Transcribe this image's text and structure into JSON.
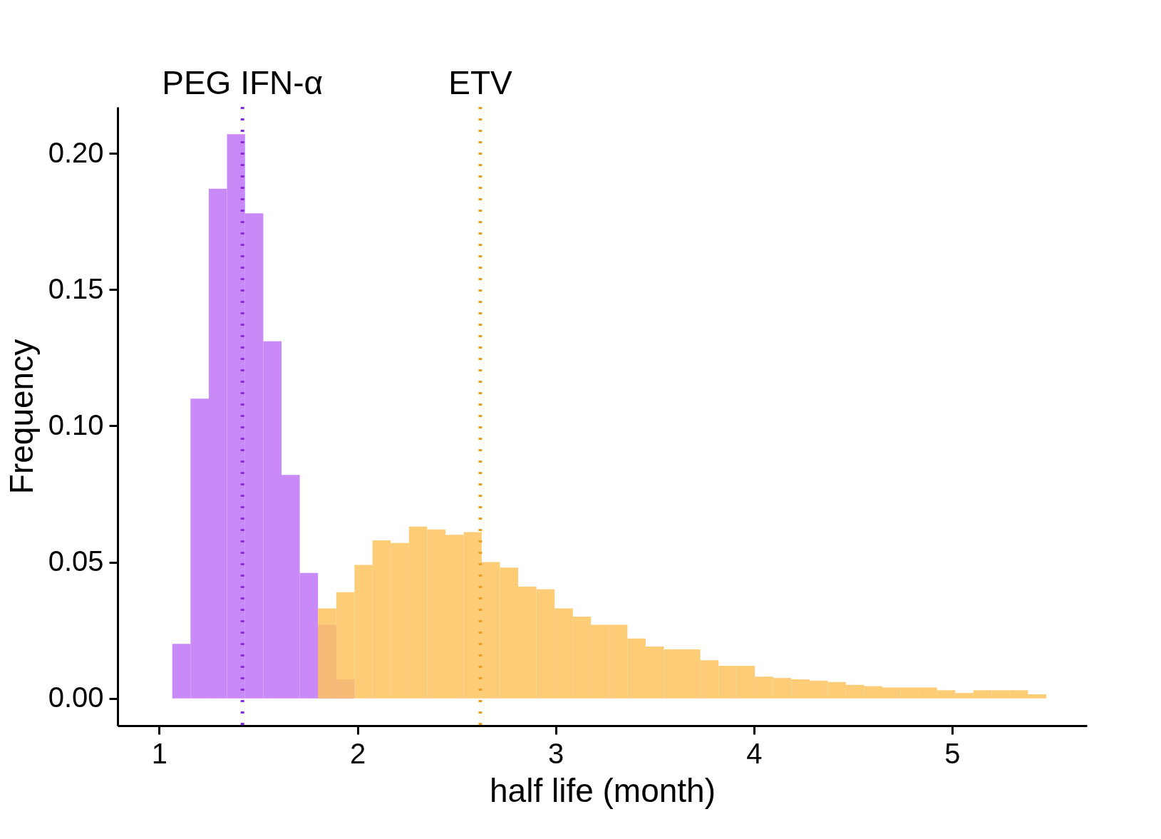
{
  "chart_data": {
    "type": "histogram",
    "xlabel": "half life (month)",
    "ylabel": "Frequency",
    "xlim": [
      0.79,
      5.68
    ],
    "xticks": [
      1,
      2,
      3,
      4,
      5
    ],
    "ylim": [
      -0.01,
      0.217
    ],
    "yticks": [
      {
        "value": 0,
        "label": "0.00"
      },
      {
        "value": 0.05,
        "label": "0.05"
      },
      {
        "value": 0.1,
        "label": "0.10"
      },
      {
        "value": 0.15,
        "label": "0.15"
      },
      {
        "value": 0.2,
        "label": "0.20"
      }
    ],
    "grid": false,
    "bins": [
      1.066,
      1.158,
      1.25,
      1.342,
      1.433,
      1.525,
      1.617,
      1.709,
      1.801,
      1.893,
      1.985,
      2.076,
      2.168,
      2.26,
      2.352,
      2.444,
      2.536,
      2.627,
      2.719,
      2.811,
      2.903,
      2.995,
      3.087,
      3.178,
      3.27,
      3.362,
      3.454,
      3.546,
      3.638,
      3.73,
      3.822,
      3.913,
      4.005,
      4.097,
      4.189,
      4.281,
      4.373,
      4.464,
      4.556,
      4.648,
      4.74,
      4.832,
      4.924,
      5.016,
      5.107,
      5.199,
      5.291,
      5.383,
      5.475
    ],
    "series": [
      {
        "color": "#c074f5",
        "values": [
          0.02,
          0.11,
          0.187,
          0.207,
          0.178,
          0.131,
          0.082,
          0.046,
          0.027,
          0.007,
          null,
          null,
          null,
          null,
          null,
          null,
          null,
          null,
          null,
          null,
          null,
          null,
          null,
          null,
          null,
          null,
          null,
          null,
          null,
          null,
          null,
          null,
          null,
          null,
          null,
          null,
          null,
          null,
          null,
          null,
          null,
          null,
          null,
          null,
          null,
          null,
          null,
          null
        ]
      },
      {
        "color": "#fcc35f",
        "values": [
          null,
          null,
          null,
          null,
          null,
          null,
          null,
          null,
          0.033,
          0.039,
          0.049,
          0.058,
          0.057,
          0.063,
          0.062,
          0.06,
          0.061,
          0.05,
          0.048,
          0.041,
          0.04,
          0.033,
          0.03,
          0.027,
          0.027,
          0.022,
          0.019,
          0.018,
          0.018,
          0.014,
          0.012,
          0.012,
          0.008,
          0.0075,
          0.007,
          0.0065,
          0.006,
          0.005,
          0.0045,
          0.004,
          0.004,
          0.004,
          0.003,
          0.002,
          0.003,
          0.003,
          0.003,
          0.0015
        ]
      }
    ],
    "ref_lines": [
      {
        "axis": "x",
        "value": 1.42,
        "label": "PEG IFN-α",
        "color": "#8a2be2",
        "line_style": "dotted"
      },
      {
        "axis": "x",
        "value": 2.62,
        "label": "ETV",
        "color": "#e8a020",
        "line_style": "dotted"
      }
    ]
  }
}
